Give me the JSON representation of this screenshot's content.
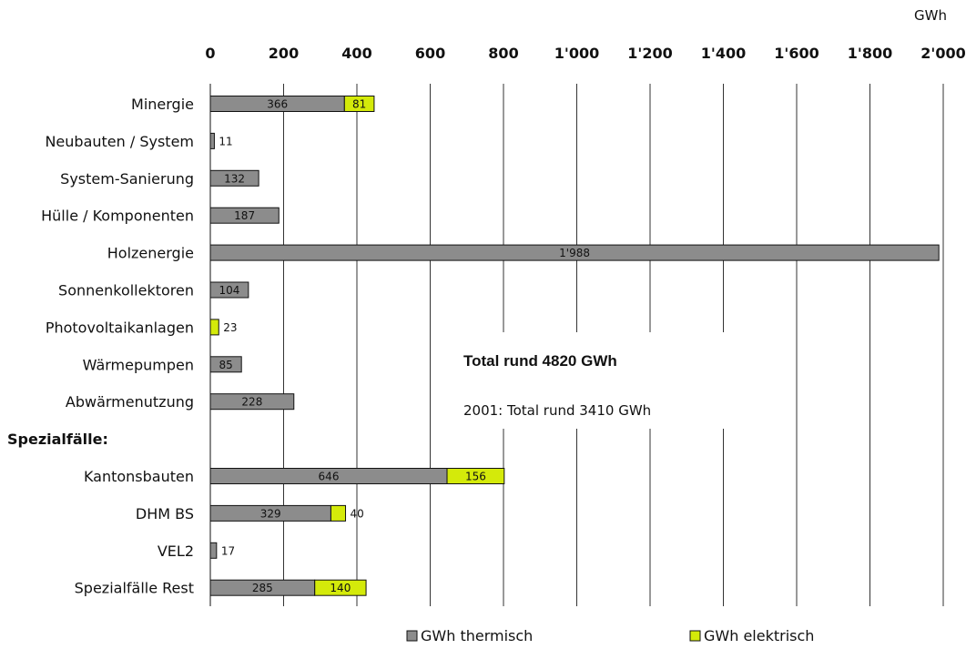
{
  "chart_data": {
    "type": "bar",
    "orientation": "horizontal",
    "stacked": true,
    "unit_label": "GWh",
    "x_ticks": [
      "0",
      "200",
      "400",
      "600",
      "800",
      "1'000",
      "1'200",
      "1'400",
      "1'600",
      "1'800",
      "2'000"
    ],
    "xlim": [
      0,
      2000
    ],
    "grid": "vertical",
    "categories": [
      "Minergie",
      "Neubauten / System",
      "System-Sanierung",
      "Hülle / Komponenten",
      "Holzenergie",
      "Sonnenkollektoren",
      "Photovoltaikanlagen",
      "Wärmepumpen",
      "Abwärmenutzung",
      "Spezialfälle:",
      "Kantonsbauten",
      "DHM BS",
      "VEL2",
      "Spezialfälle Rest"
    ],
    "bold_categories": [
      "Spezialfälle:"
    ],
    "series": [
      {
        "name": "GWh thermisch",
        "color": "#8c8c8c",
        "values": [
          366,
          11,
          132,
          187,
          1988,
          104,
          null,
          85,
          228,
          null,
          646,
          329,
          17,
          285
        ],
        "labels": [
          "366",
          "11",
          "132",
          "187",
          "1'988",
          "104",
          "",
          "85",
          "228",
          "",
          "646",
          "329",
          "17",
          "285"
        ]
      },
      {
        "name": "GWh elektrisch",
        "color": "#d4ea0a",
        "values": [
          81,
          null,
          null,
          null,
          null,
          null,
          23,
          null,
          null,
          null,
          156,
          40,
          null,
          140
        ],
        "labels": [
          "81",
          "",
          "",
          "",
          "",
          "",
          "23",
          "",
          "",
          "",
          "156",
          "40",
          "",
          "140"
        ]
      }
    ],
    "annotations": {
      "total": "Total rund 4820 GWh",
      "previous": "2001: Total rund 3410 GWh"
    },
    "legend_position": "bottom"
  }
}
